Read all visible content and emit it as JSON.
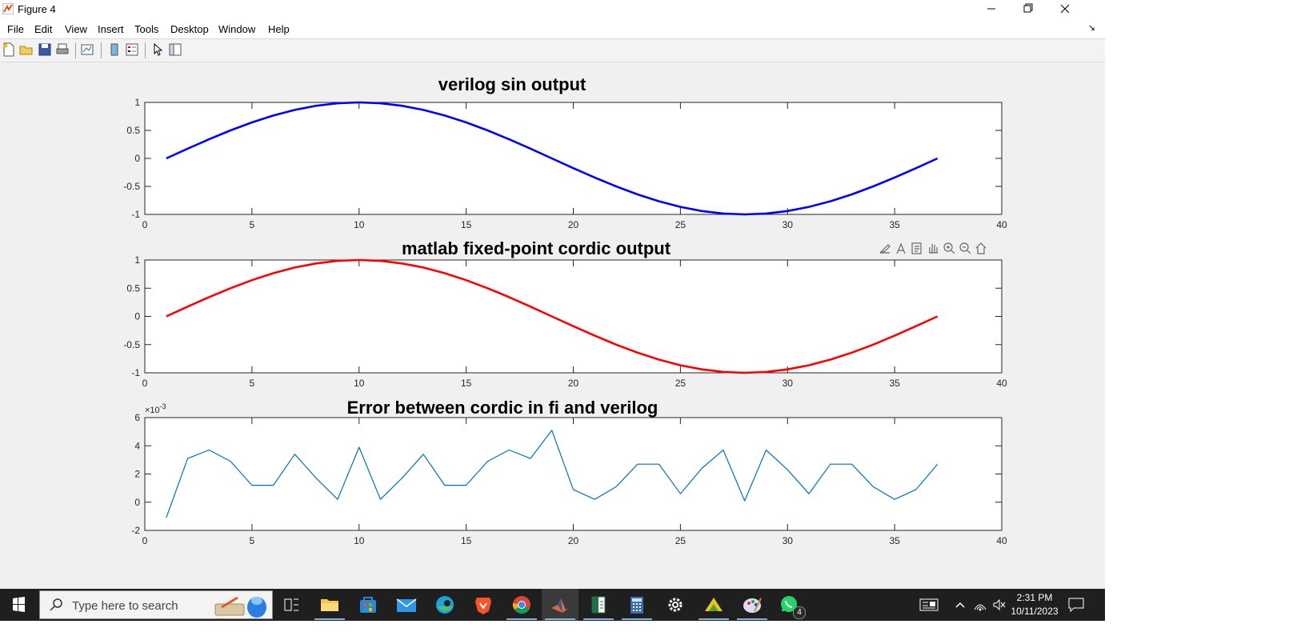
{
  "window": {
    "title": "Figure 4"
  },
  "menu": [
    "File",
    "Edit",
    "View",
    "Insert",
    "Tools",
    "Desktop",
    "Window",
    "Help"
  ],
  "toolbar_icons": [
    "new-figure-icon",
    "open-icon",
    "save-icon",
    "print-icon",
    "link-plot-icon",
    "colorbar-icon",
    "legend-icon",
    "edit-plot-icon",
    "property-inspector-icon"
  ],
  "axes_toolbar_icons": [
    "brush-icon",
    "data-tips-icon",
    "export-icon",
    "pan-icon",
    "zoom-in-icon",
    "zoom-out-icon",
    "home-icon"
  ],
  "chart_data": [
    {
      "type": "line",
      "title": "verilog sin output",
      "series": [
        {
          "color": "#0000ff",
          "x_start": 1,
          "x_end": 37,
          "values": [
            0.0,
            0.1736,
            0.342,
            0.5,
            0.6428,
            0.766,
            0.866,
            0.9397,
            0.9848,
            1.0,
            0.9848,
            0.9397,
            0.866,
            0.766,
            0.6428,
            0.5,
            0.342,
            0.1736,
            0.0,
            -0.1736,
            -0.342,
            -0.5,
            -0.6428,
            -0.766,
            -0.866,
            -0.9397,
            -0.9848,
            -1.0,
            -0.9848,
            -0.9397,
            -0.866,
            -0.766,
            -0.6428,
            -0.5,
            -0.342,
            -0.1736,
            0.0
          ]
        }
      ],
      "xlim": [
        0,
        40
      ],
      "ylim": [
        -1,
        1
      ],
      "xticks": [
        "0",
        "5",
        "10",
        "15",
        "20",
        "25",
        "30",
        "35",
        "40"
      ],
      "yticks": [
        "1",
        "0.5",
        "0",
        "-0.5",
        "-1"
      ],
      "exponent": ""
    },
    {
      "type": "line",
      "title": "matlab fixed-point cordic output",
      "series": [
        {
          "color": "#ff0000",
          "x_start": 1,
          "x_end": 37,
          "values": [
            0.0,
            0.1736,
            0.342,
            0.5,
            0.6428,
            0.766,
            0.866,
            0.9397,
            0.9848,
            1.0,
            0.9848,
            0.9397,
            0.866,
            0.766,
            0.6428,
            0.5,
            0.342,
            0.1736,
            0.0,
            -0.1736,
            -0.342,
            -0.5,
            -0.6428,
            -0.766,
            -0.866,
            -0.9397,
            -0.9848,
            -1.0,
            -0.9848,
            -0.9397,
            -0.866,
            -0.766,
            -0.6428,
            -0.5,
            -0.342,
            -0.1736,
            0.0
          ]
        }
      ],
      "xlim": [
        0,
        40
      ],
      "ylim": [
        -1,
        1
      ],
      "xticks": [
        "0",
        "5",
        "10",
        "15",
        "20",
        "25",
        "30",
        "35",
        "40"
      ],
      "yticks": [
        "1",
        "0.5",
        "0",
        "-0.5",
        "-1"
      ],
      "exponent": ""
    },
    {
      "type": "line",
      "title": "Error between cordic in fi and verilog",
      "series": [
        {
          "color": "#0072bd",
          "x_start": 1,
          "x_end": 37,
          "values": [
            -1.1,
            3.1,
            3.7,
            2.9,
            1.2,
            1.2,
            3.4,
            1.7,
            0.2,
            3.9,
            0.2,
            1.7,
            3.4,
            1.2,
            1.2,
            2.9,
            3.7,
            3.1,
            5.1,
            0.9,
            0.2,
            1.1,
            2.7,
            2.7,
            0.6,
            2.4,
            3.7,
            0.1,
            3.7,
            2.3,
            0.6,
            2.7,
            2.7,
            1.1,
            0.2,
            0.9,
            2.7
          ]
        }
      ],
      "xlim": [
        0,
        40
      ],
      "ylim": [
        -2,
        6
      ],
      "xticks": [
        "0",
        "5",
        "10",
        "15",
        "20",
        "25",
        "30",
        "35",
        "40"
      ],
      "yticks": [
        "6",
        "4",
        "2",
        "0",
        "-2"
      ],
      "exponent": "×10",
      "exponent_power": "-3"
    }
  ],
  "taskbar": {
    "search_placeholder": "Type here to search",
    "apps": [
      "task-view-icon",
      "file-explorer-icon",
      "microsoft-store-icon",
      "mail-icon",
      "edge-icon",
      "brave-icon",
      "chrome-icon",
      "matlab-icon",
      "spreadsheet-icon",
      "calculator-icon",
      "settings-icon",
      "vivado-icon",
      "paint-icon",
      "whatsapp-icon"
    ],
    "whatsapp_badge": "4",
    "time": "2:31 PM",
    "date": "10/11/2023"
  }
}
